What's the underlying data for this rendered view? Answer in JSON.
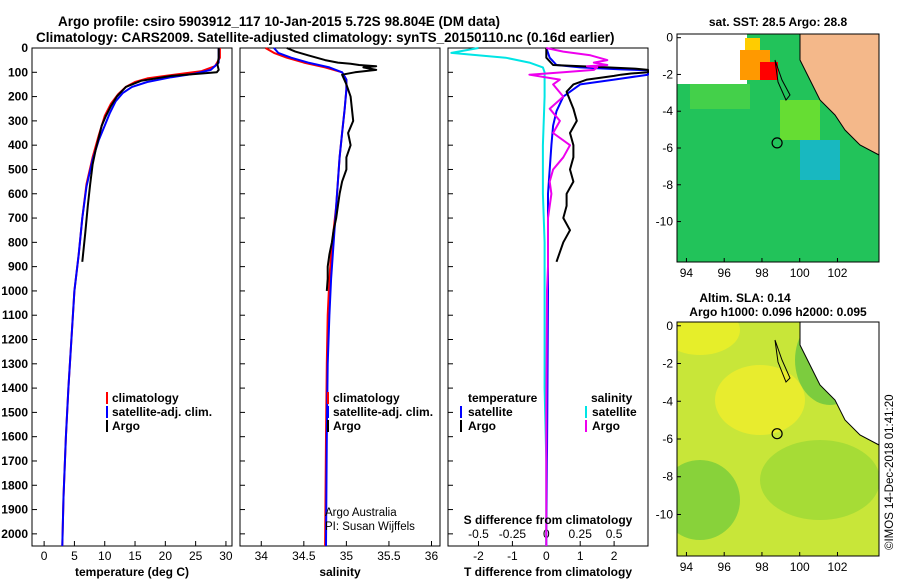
{
  "title": {
    "line1": "Argo profile: csiro 5903912_117 10-Jan-2015 5.72S 98.804E (DM data)",
    "line2": "Climatology: CARS2009. Satellite-adjusted climatology: synTS_20150110.nc (0.16d earlier)"
  },
  "colors": {
    "climatology": "#ff0000",
    "satellite": "#0000ff",
    "argo": "#000000",
    "s_satellite": "#00e5e5",
    "s_argo": "#ee00ee"
  },
  "legend": {
    "climatology": "climatology",
    "satellite": "satellite-adj. clim.",
    "argo": "Argo",
    "temperature_head": "temperature",
    "salinity_head": "salinity",
    "satellite_short": "satellite"
  },
  "credits": {
    "line1": "Argo Australia",
    "line2": "PI: Susan Wijffels"
  },
  "timestamp": "©IMOS 14-Dec-2018 01:41:20",
  "map_sst": {
    "title": "sat. SST: 28.5 Argo: 28.8"
  },
  "map_sla": {
    "title1": "Altim. SLA: 0.14",
    "title2": "Argo h1000: 0.096 h2000: 0.095"
  },
  "chart_data": [
    {
      "type": "line",
      "name": "temperature",
      "xlabel": "temperature (deg C)",
      "xlim": [
        -2,
        31
      ],
      "ylim": [
        0,
        2050
      ],
      "xticks": [
        0,
        5,
        10,
        15,
        20,
        25,
        30
      ],
      "yticks": [
        0,
        100,
        200,
        300,
        400,
        500,
        600,
        700,
        800,
        900,
        1000,
        1100,
        1200,
        1300,
        1400,
        1500,
        1600,
        1700,
        1800,
        1900,
        2000
      ],
      "series": [
        {
          "name": "climatology",
          "x": [
            29,
            29,
            28.2,
            26,
            23,
            20,
            17,
            15,
            13.5,
            12.2,
            11,
            10,
            9,
            8,
            7,
            6.3,
            5.7,
            5,
            4.5,
            4,
            3.6,
            3.2,
            3
          ],
          "y": [
            0,
            40,
            75,
            95,
            105,
            115,
            125,
            140,
            160,
            190,
            230,
            280,
            360,
            450,
            560,
            700,
            850,
            1000,
            1200,
            1400,
            1600,
            1850,
            2050
          ]
        },
        {
          "name": "satellite-adj. clim.",
          "x": [
            28.8,
            28.8,
            27.5,
            25,
            21,
            17,
            14.5,
            13,
            11.8,
            10.8,
            10,
            9,
            8,
            7,
            6.3,
            5.7,
            5,
            4.5,
            4,
            3.6,
            3.2,
            3
          ],
          "y": [
            0,
            60,
            90,
            105,
            120,
            140,
            160,
            185,
            220,
            270,
            320,
            380,
            460,
            570,
            700,
            850,
            1000,
            1200,
            1400,
            1600,
            1850,
            2050
          ]
        },
        {
          "name": "Argo",
          "x": [
            28.8,
            28.8,
            28.6,
            28.8,
            28.5,
            26,
            21,
            16,
            13.5,
            12,
            11,
            10.2,
            9.5,
            9,
            8.5,
            8,
            7.6,
            7.2,
            6.8,
            6.3
          ],
          "y": [
            0,
            40,
            70,
            90,
            100,
            105,
            115,
            135,
            160,
            200,
            240,
            280,
            320,
            370,
            420,
            480,
            560,
            650,
            760,
            880
          ]
        }
      ]
    },
    {
      "type": "line",
      "name": "salinity",
      "xlabel": "salinity",
      "xlim": [
        33.75,
        36.1
      ],
      "ylim": [
        0,
        2050
      ],
      "xticks": [
        34,
        34.5,
        35,
        35.5,
        36
      ],
      "xtick_labels": [
        "34",
        "34.5",
        "35",
        "35.5",
        "36"
      ],
      "series": [
        {
          "name": "climatology",
          "x": [
            34.05,
            34.15,
            34.3,
            34.5,
            34.75,
            34.95,
            35.0,
            35.0,
            34.98,
            34.95,
            34.92,
            34.9,
            34.88,
            34.85,
            34.82,
            34.8,
            34.78,
            34.77,
            34.76,
            34.75
          ],
          "y": [
            0,
            20,
            40,
            60,
            80,
            100,
            130,
            170,
            250,
            350,
            450,
            550,
            650,
            750,
            850,
            950,
            1100,
            1300,
            1600,
            2050
          ]
        },
        {
          "name": "satellite-adj. clim.",
          "x": [
            34.15,
            34.2,
            34.35,
            34.55,
            34.8,
            34.95,
            35.0,
            35.0,
            34.98,
            34.95,
            34.92,
            34.9,
            34.88,
            34.86,
            34.84,
            34.82,
            34.8,
            34.78,
            34.77,
            34.76
          ],
          "y": [
            0,
            20,
            40,
            60,
            80,
            100,
            130,
            170,
            250,
            350,
            450,
            550,
            650,
            750,
            850,
            950,
            1100,
            1300,
            1600,
            2050
          ]
        },
        {
          "name": "Argo",
          "x": [
            34.3,
            34.4,
            34.55,
            34.75,
            34.9,
            35.05,
            35.15,
            35.35,
            35.2,
            35.35,
            35.1,
            34.95,
            35.0,
            35.05,
            35.08,
            35.02,
            35.05,
            35.0,
            35.0,
            34.95,
            34.92,
            34.9,
            34.88,
            34.85,
            34.83,
            34.8,
            34.78,
            34.78,
            34.77
          ],
          "y": [
            0,
            15,
            30,
            50,
            60,
            65,
            70,
            75,
            80,
            90,
            100,
            110,
            150,
            200,
            300,
            350,
            400,
            450,
            500,
            550,
            600,
            650,
            700,
            750,
            800,
            850,
            900,
            950,
            1000
          ]
        }
      ]
    },
    {
      "type": "line",
      "name": "difference",
      "xlabel": "T difference from climatology",
      "xlim": [
        -2.9,
        3.0
      ],
      "ylim": [
        0,
        2050
      ],
      "xticks": [
        -2,
        -1,
        0,
        1,
        2
      ],
      "secondary_axis": {
        "label": "S difference from climatology",
        "ticks": [
          "-0.5",
          "-0.25",
          "0",
          "0.25",
          "0.5"
        ]
      },
      "series": [
        {
          "name": "temperature satellite",
          "x": [
            0,
            0.1,
            0.3,
            1,
            2.2,
            3,
            3,
            3,
            2,
            1,
            0.8,
            0.5,
            0.3,
            0.2,
            0.15,
            0.1,
            0.05,
            0.05,
            0.05,
            0.03,
            0
          ],
          "y": [
            0,
            40,
            70,
            80,
            88,
            92,
            100,
            110,
            130,
            150,
            170,
            200,
            260,
            320,
            400,
            500,
            600,
            700,
            1000,
            1500,
            2050
          ]
        },
        {
          "name": "temperature Argo",
          "x": [
            0,
            0,
            0.2,
            1.8,
            2.6,
            3,
            3,
            2.5,
            2.2,
            2,
            1.2,
            0.8,
            0.6,
            0.8,
            0.9,
            0.7,
            0.8,
            0.8,
            0.7,
            0.8,
            0.6,
            0.6,
            0.5,
            0.7,
            0.5,
            0.3
          ],
          "y": [
            0,
            40,
            70,
            80,
            85,
            90,
            100,
            105,
            110,
            115,
            130,
            150,
            180,
            250,
            300,
            350,
            400,
            450,
            500,
            550,
            600,
            650,
            700,
            750,
            800,
            880
          ]
        },
        {
          "name": "salinity satellite",
          "x": [
            -2,
            -2.8,
            -1.2,
            -0.5,
            -0.1,
            -0.05,
            -0.05,
            -0.1,
            -0.1,
            -0.05,
            -0.05,
            -0.05,
            0,
            0,
            0
          ],
          "y": [
            0,
            20,
            40,
            60,
            80,
            100,
            200,
            400,
            600,
            800,
            1000,
            1400,
            1700,
            1900,
            2050
          ]
        },
        {
          "name": "salinity Argo",
          "x": [
            0,
            0.5,
            1.3,
            1.8,
            1.4,
            1.6,
            1.8,
            1.2,
            1.5,
            1.4,
            0.5,
            -0.5,
            0.4,
            0.2,
            0.5,
            0.1,
            0.4,
            0.2,
            0.7,
            0.5,
            0.2,
            0.1,
            0.15,
            0.05,
            0.05,
            0.05,
            0.02,
            0,
            0
          ],
          "y": [
            0,
            15,
            30,
            50,
            60,
            65,
            70,
            75,
            80,
            90,
            100,
            110,
            130,
            150,
            200,
            250,
            300,
            350,
            400,
            450,
            500,
            550,
            600,
            700,
            800,
            900,
            1000,
            1500,
            2050
          ]
        }
      ]
    },
    {
      "type": "heatmap",
      "name": "sst-map",
      "xlim": [
        93.5,
        104.2
      ],
      "ylim": [
        -12.2,
        0.2
      ],
      "xticks": [
        94,
        96,
        98,
        100,
        102
      ],
      "yticks": [
        0,
        -2,
        -4,
        -6,
        -8,
        -10
      ],
      "argo_position": [
        98.804,
        -5.72
      ]
    },
    {
      "type": "heatmap",
      "name": "sla-map",
      "xlim": [
        93.5,
        104.2
      ],
      "ylim": [
        -12.2,
        0.2
      ],
      "xticks": [
        94,
        96,
        98,
        100,
        102
      ],
      "yticks": [
        0,
        -2,
        -4,
        -6,
        -8,
        -10
      ],
      "argo_position": [
        98.804,
        -5.72
      ]
    }
  ]
}
